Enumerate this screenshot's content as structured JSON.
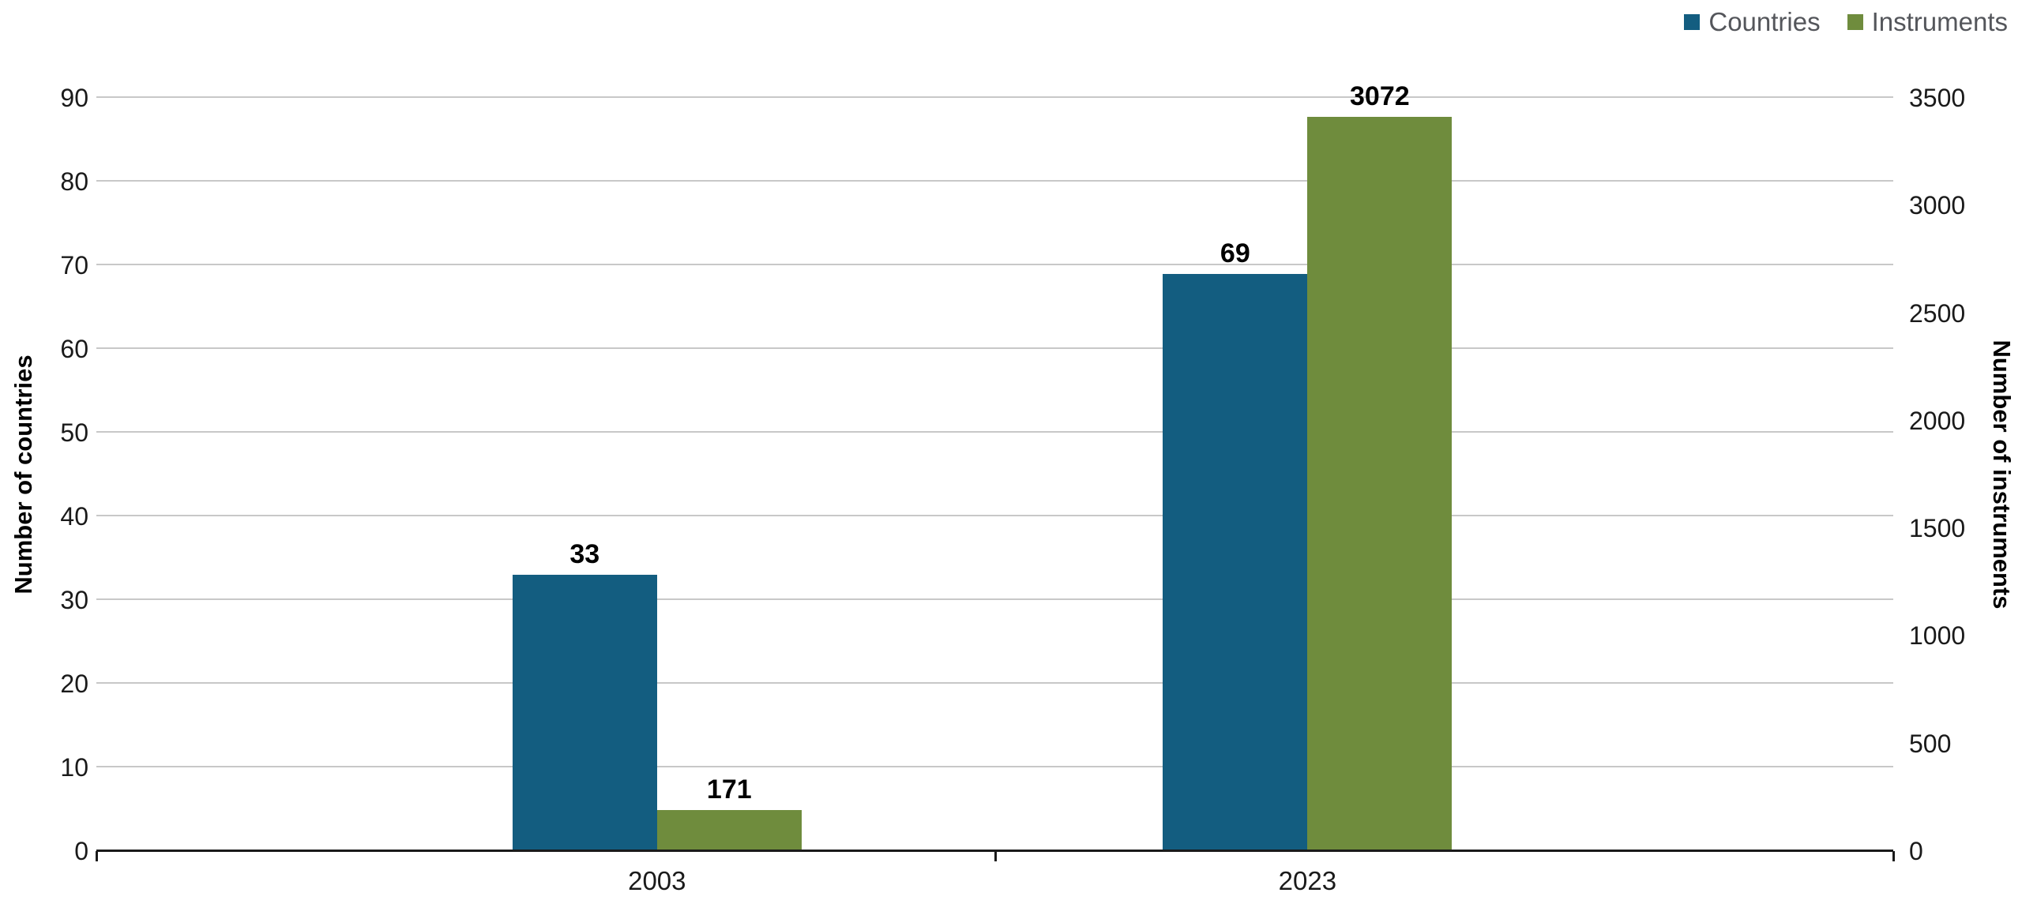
{
  "chart_data": {
    "type": "bar",
    "title": "",
    "categories": [
      "2003",
      "2023"
    ],
    "series": [
      {
        "name": "Countries",
        "axis": "left",
        "color": "#135d80",
        "values": [
          33,
          69
        ]
      },
      {
        "name": "Instruments",
        "axis": "right",
        "color": "#6f8c3d",
        "values": [
          171,
          3072
        ]
      }
    ],
    "left_axis": {
      "label": "Number of countries",
      "min": 0,
      "max": 90,
      "ticks": [
        0,
        10,
        20,
        30,
        40,
        50,
        60,
        70,
        80,
        90
      ]
    },
    "right_axis": {
      "label": "Number of instruments",
      "min": 0,
      "max": 3500,
      "plot_max": 3150,
      "ticks": [
        0,
        500,
        1000,
        1500,
        2000,
        2500,
        3000,
        3500
      ]
    },
    "legend": {
      "position": "top-right",
      "items": [
        "Countries",
        "Instruments"
      ]
    },
    "grid": true,
    "value_labels": {
      "Countries": [
        "33",
        "69"
      ],
      "Instruments": [
        "171",
        "3072"
      ]
    }
  },
  "style": {
    "gridline_color": "#c8c8c8",
    "axis_line_color": "#1a1a1a",
    "tick_text_color": "#1a1a1a",
    "legend_text_color": "#54565b",
    "value_label_color": "#000000",
    "background": "#ffffff"
  }
}
